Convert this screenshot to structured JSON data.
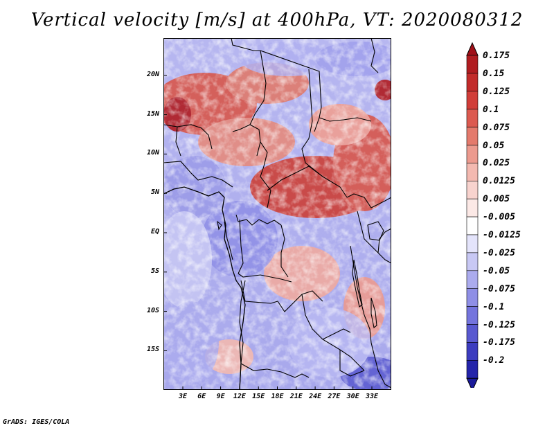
{
  "title": "Vertical velocity [m/s] at 400hPa, VT: 2020080312",
  "credit": "GrADS: IGES/COLA",
  "map": {
    "lat_ticks": [
      {
        "value": 20,
        "label": "20N"
      },
      {
        "value": 15,
        "label": "15N"
      },
      {
        "value": 10,
        "label": "10N"
      },
      {
        "value": 5,
        "label": "5N"
      },
      {
        "value": 0,
        "label": "EQ"
      },
      {
        "value": -5,
        "label": "5S"
      },
      {
        "value": -10,
        "label": "10S"
      },
      {
        "value": -15,
        "label": "15S"
      }
    ],
    "lon_ticks": [
      {
        "value": 3,
        "label": "3E"
      },
      {
        "value": 6,
        "label": "6E"
      },
      {
        "value": 9,
        "label": "9E"
      },
      {
        "value": 12,
        "label": "12E"
      },
      {
        "value": 15,
        "label": "15E"
      },
      {
        "value": 18,
        "label": "18E"
      },
      {
        "value": 21,
        "label": "21E"
      },
      {
        "value": 24,
        "label": "24E"
      },
      {
        "value": 27,
        "label": "27E"
      },
      {
        "value": 30,
        "label": "30E"
      },
      {
        "value": 33,
        "label": "33E"
      }
    ]
  },
  "colorbar": {
    "levels": [
      {
        "label": "0.175",
        "color": "#b01c20"
      },
      {
        "label": "0.15",
        "color": "#c22b2a"
      },
      {
        "label": "0.125",
        "color": "#d13d38"
      },
      {
        "label": "0.1",
        "color": "#dc5a50"
      },
      {
        "label": "0.075",
        "color": "#e47a6c"
      },
      {
        "label": "0.05",
        "color": "#ec9a8e"
      },
      {
        "label": "0.025",
        "color": "#f3b9b0"
      },
      {
        "label": "0.0125",
        "color": "#f8d3ce"
      },
      {
        "label": "0.005",
        "color": "#fce9e6"
      },
      {
        "label": "-0.005",
        "color": "#ffffff"
      },
      {
        "label": "-0.0125",
        "color": "#e4e4fb"
      },
      {
        "label": "-0.025",
        "color": "#c8c8f4"
      },
      {
        "label": "-0.05",
        "color": "#ababee"
      },
      {
        "label": "-0.075",
        "color": "#8f8fe6"
      },
      {
        "label": "-0.1",
        "color": "#7474dd"
      },
      {
        "label": "-0.125",
        "color": "#5959d0"
      },
      {
        "label": "-0.175",
        "color": "#3c3cbf"
      },
      {
        "label": "-0.2",
        "color": "#2424aa"
      }
    ],
    "top_color": "#a01018",
    "bottom_color": "#1a1a9a"
  }
}
